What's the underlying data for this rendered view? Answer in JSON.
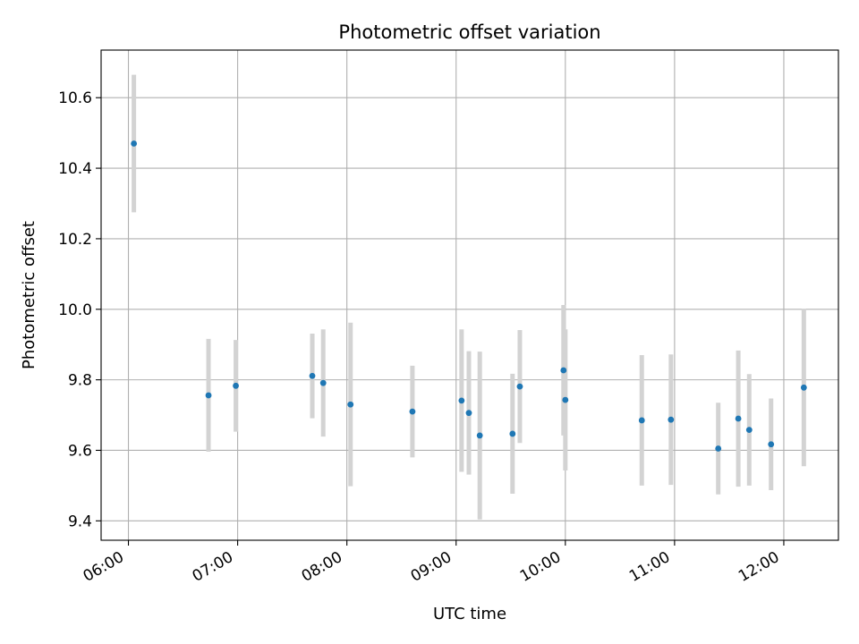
{
  "chart_data": {
    "type": "scatter",
    "title": "Photometric offset variation",
    "xlabel": "UTC time",
    "ylabel": "Photometric offset",
    "xlim": [
      "05:45",
      "12:30"
    ],
    "ylim": [
      9.345,
      10.735
    ],
    "grid": true,
    "x_ticks": [
      "06:00",
      "07:00",
      "08:00",
      "09:00",
      "10:00",
      "11:00",
      "12:00"
    ],
    "y_ticks": [
      "9.4",
      "9.6",
      "9.8",
      "10.0",
      "10.2",
      "10.4",
      "10.6"
    ],
    "series": [
      {
        "marker_color": "#1f77b4",
        "errorbar_color": "#d3d3d3",
        "points": [
          {
            "t": "06:03",
            "y": 10.47,
            "err": 0.195
          },
          {
            "t": "06:44",
            "y": 9.756,
            "err": 0.16
          },
          {
            "t": "06:59",
            "y": 9.783,
            "err": 0.13
          },
          {
            "t": "07:41",
            "y": 9.811,
            "err": 0.12
          },
          {
            "t": "07:47",
            "y": 9.791,
            "err": 0.152
          },
          {
            "t": "08:02",
            "y": 9.73,
            "err": 0.232
          },
          {
            "t": "08:36",
            "y": 9.71,
            "err": 0.13
          },
          {
            "t": "09:03",
            "y": 9.741,
            "err": 0.202
          },
          {
            "t": "09:07",
            "y": 9.706,
            "err": 0.175
          },
          {
            "t": "09:13",
            "y": 9.642,
            "err": 0.238
          },
          {
            "t": "09:31",
            "y": 9.647,
            "err": 0.17
          },
          {
            "t": "09:35",
            "y": 9.781,
            "err": 0.16
          },
          {
            "t": "09:59",
            "y": 9.827,
            "err": 0.185
          },
          {
            "t": "10:00",
            "y": 9.743,
            "err": 0.2
          },
          {
            "t": "10:42",
            "y": 9.685,
            "err": 0.185
          },
          {
            "t": "10:58",
            "y": 9.687,
            "err": 0.185
          },
          {
            "t": "11:24",
            "y": 9.605,
            "err": 0.13
          },
          {
            "t": "11:35",
            "y": 9.69,
            "err": 0.193
          },
          {
            "t": "11:41",
            "y": 9.658,
            "err": 0.158
          },
          {
            "t": "11:53",
            "y": 9.617,
            "err": 0.13
          },
          {
            "t": "12:11",
            "y": 9.778,
            "err": 0.223
          }
        ]
      }
    ]
  }
}
